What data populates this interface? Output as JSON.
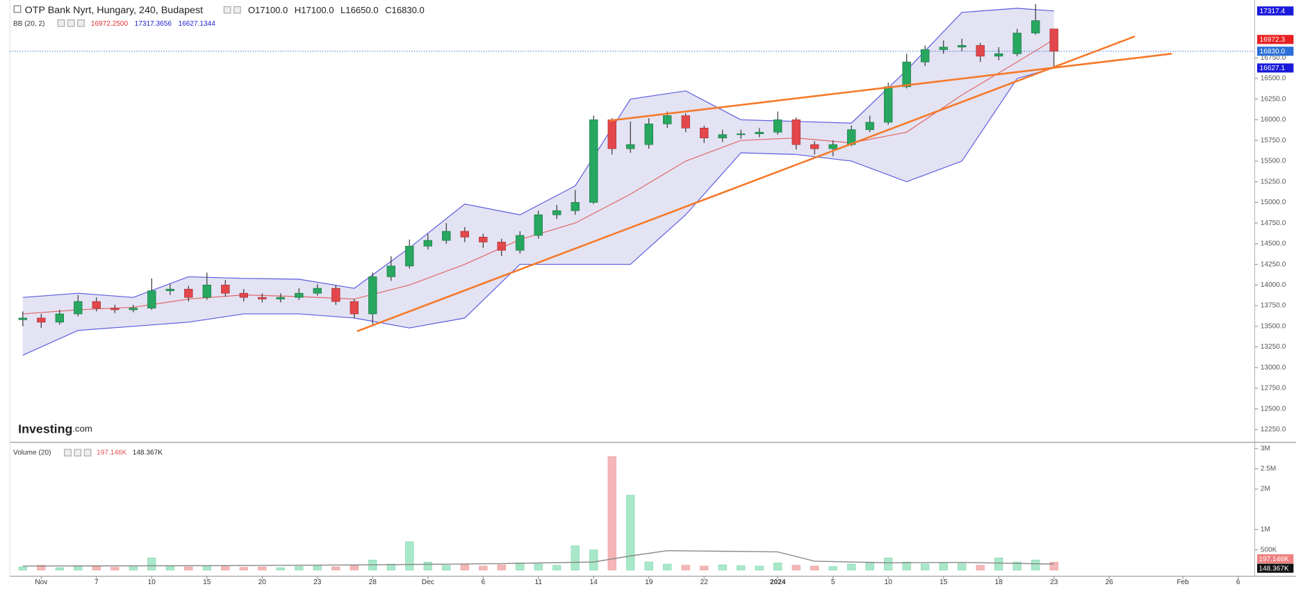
{
  "header": {
    "title": "OTP Bank Nyrt, Hungary, 240, Budapest",
    "ohlc": [
      "O17100.0",
      "H17100.0",
      "L16650.0",
      "C16830.0"
    ],
    "indicator": "BB (20, 2)",
    "indicator_values": [
      {
        "text": "16972.2500",
        "color": "#e03030"
      },
      {
        "text": "17317.3656",
        "color": "#2020d0"
      },
      {
        "text": "16627.1344",
        "color": "#2020d0"
      }
    ],
    "volume_indicator": "Volume (20)",
    "volume_values": [
      {
        "text": "197.146K",
        "color": "#e05050"
      },
      {
        "text": "148.367K",
        "color": "#222222"
      }
    ],
    "logo": [
      "Investing",
      ".com"
    ]
  },
  "chart_data": [
    {
      "type": "candlestick",
      "x": [
        -1,
        0,
        1,
        2,
        3,
        4,
        5,
        6,
        7,
        8,
        9,
        10,
        11,
        12,
        13,
        14,
        15,
        16,
        17,
        18,
        19,
        20,
        21,
        22,
        23,
        24,
        25,
        26,
        27,
        28,
        29,
        30,
        31,
        32,
        33,
        34,
        35,
        36,
        37,
        38,
        39,
        40,
        41,
        42,
        43,
        44,
        45,
        46,
        47,
        48,
        49,
        50,
        51,
        52,
        53,
        54,
        55
      ],
      "open": [
        13580,
        13600,
        13550,
        13650,
        13800,
        13720,
        13700,
        13720,
        13930,
        13950,
        13850,
        14000,
        13900,
        13850,
        13830,
        13850,
        13900,
        13960,
        13800,
        13650,
        14100,
        14230,
        14470,
        14540,
        14650,
        14580,
        14520,
        14420,
        14600,
        14850,
        14900,
        15000,
        16000,
        15650,
        15700,
        15950,
        16050,
        15900,
        15780,
        15820,
        15830,
        15850,
        16000,
        15700,
        15650,
        15700,
        15880,
        15970,
        16400,
        16700,
        16850,
        16880,
        16900,
        16770,
        16800,
        17050,
        17100
      ],
      "high": [
        13680,
        13650,
        13700,
        13880,
        13850,
        13760,
        13760,
        14080,
        14010,
        13990,
        14150,
        14060,
        13950,
        13900,
        13900,
        13960,
        14010,
        14000,
        13830,
        14150,
        14350,
        14550,
        14620,
        14750,
        14700,
        14620,
        14560,
        14650,
        14900,
        14970,
        15150,
        16050,
        16020,
        15980,
        16020,
        16100,
        16080,
        15930,
        15880,
        15880,
        15900,
        16100,
        16030,
        15740,
        15750,
        15930,
        16050,
        16450,
        16800,
        16900,
        16960,
        16980,
        16930,
        16880,
        17100,
        17400,
        17100
      ],
      "low": [
        13500,
        13480,
        13520,
        13620,
        13680,
        13660,
        13670,
        13700,
        13880,
        13800,
        13820,
        13860,
        13800,
        13790,
        13790,
        13820,
        13870,
        13760,
        13600,
        13500,
        14050,
        14200,
        14430,
        14500,
        14520,
        14450,
        14350,
        14380,
        14560,
        14800,
        14850,
        14980,
        15580,
        15600,
        15650,
        15900,
        15850,
        15720,
        15730,
        15770,
        15790,
        15820,
        15640,
        15580,
        15560,
        15680,
        15850,
        15940,
        16380,
        16650,
        16800,
        16830,
        16700,
        16720,
        16770,
        17030,
        16650
      ],
      "close": [
        13600,
        13550,
        13650,
        13800,
        13720,
        13700,
        13720,
        13930,
        13950,
        13850,
        14000,
        13900,
        13850,
        13830,
        13850,
        13900,
        13960,
        13800,
        13650,
        14100,
        14230,
        14470,
        14540,
        14650,
        14580,
        14520,
        14420,
        14600,
        14850,
        14900,
        15000,
        16000,
        15650,
        15700,
        15950,
        16050,
        15900,
        15780,
        15820,
        15830,
        15850,
        16000,
        15700,
        15650,
        15700,
        15880,
        15970,
        16400,
        16700,
        16850,
        16880,
        16900,
        16770,
        16800,
        17050,
        17200,
        16830
      ],
      "up_color": "#27a760",
      "down_color": "#e3474b",
      "xlim": [
        -1.7,
        65.9
      ],
      "ylim": [
        12100,
        17450
      ],
      "yticks": [
        {
          "value": 12250,
          "label": "12250.0"
        },
        {
          "value": 12500,
          "label": "12500.0"
        },
        {
          "value": 12750,
          "label": "12750.0"
        },
        {
          "value": 13000,
          "label": "13000.0"
        },
        {
          "value": 13250,
          "label": "13250.0"
        },
        {
          "value": 13500,
          "label": "13500.0"
        },
        {
          "value": 13750,
          "label": "13750.0"
        },
        {
          "value": 14000,
          "label": "14000.0"
        },
        {
          "value": 14250,
          "label": "14250.0"
        },
        {
          "value": 14500,
          "label": "14500.0"
        },
        {
          "value": 14750,
          "label": "14750.0"
        },
        {
          "value": 15000,
          "label": "15000.0"
        },
        {
          "value": 15250,
          "label": "15250.0"
        },
        {
          "value": 15500,
          "label": "15500.0"
        },
        {
          "value": 15750,
          "label": "15750.0"
        },
        {
          "value": 16000,
          "label": "16000.0"
        },
        {
          "value": 16250,
          "label": "16250.0"
        },
        {
          "value": 16500,
          "label": "16500.0"
        },
        {
          "value": 16750,
          "label": "16750.0"
        }
      ],
      "bands": {
        "x": [
          -1,
          2,
          5,
          8,
          11,
          14,
          17,
          20,
          23,
          26,
          29,
          32,
          35,
          38,
          41,
          44,
          47,
          50,
          53,
          55
        ],
        "upper": [
          13850,
          13900,
          13850,
          14100,
          14080,
          14070,
          13960,
          14450,
          14980,
          14850,
          15200,
          16250,
          16350,
          16000,
          15980,
          15960,
          16600,
          17300,
          17350,
          17317
        ],
        "middle": [
          13650,
          13700,
          13730,
          13830,
          13880,
          13860,
          13830,
          14000,
          14250,
          14550,
          14750,
          15100,
          15500,
          15750,
          15780,
          15720,
          15850,
          16300,
          16700,
          16972
        ],
        "lower": [
          13150,
          13450,
          13500,
          13550,
          13650,
          13650,
          13600,
          13480,
          13600,
          14250,
          14250,
          14250,
          14850,
          15600,
          15580,
          15500,
          15250,
          15500,
          16500,
          16627
        ],
        "line_color": "#5b5be0",
        "fill": "#dcdcf0",
        "middle_color": "#e06666"
      },
      "trendlines": {
        "color": "#f5792a",
        "lines": [
          {
            "x": [
              17.15,
              59.4
            ],
            "values": [
              13440,
              17010
            ]
          },
          {
            "x": [
              30.85,
              61.4
            ],
            "values": [
              15990,
              16800
            ]
          }
        ]
      },
      "last_price_line": 16830,
      "price_tags": [
        {
          "value": 17317.4,
          "label": "17317.4",
          "color": "#1a1adb"
        },
        {
          "value": 16972.3,
          "label": "16972.3",
          "color": "#e82020"
        },
        {
          "value": 16830,
          "label": "16830.0",
          "color": "#2b6fd6"
        },
        {
          "value": 16627.1,
          "label": "16627.1",
          "color": "#1a1adb"
        }
      ]
    },
    {
      "type": "bar",
      "x": [
        -1,
        0,
        1,
        2,
        3,
        4,
        5,
        6,
        7,
        8,
        9,
        10,
        11,
        12,
        13,
        14,
        15,
        16,
        17,
        18,
        19,
        20,
        21,
        22,
        23,
        24,
        25,
        26,
        27,
        28,
        29,
        30,
        31,
        32,
        33,
        34,
        35,
        36,
        37,
        38,
        39,
        40,
        41,
        42,
        43,
        44,
        45,
        46,
        47,
        48,
        49,
        50,
        51,
        52,
        53,
        54,
        55
      ],
      "values": [
        80000,
        120000,
        60000,
        100000,
        90000,
        70000,
        80000,
        300000,
        100000,
        80000,
        110000,
        90000,
        70000,
        80000,
        60000,
        90000,
        100000,
        80000,
        120000,
        250000,
        150000,
        700000,
        200000,
        120000,
        150000,
        100000,
        130000,
        180000,
        150000,
        120000,
        600000,
        500000,
        2800000,
        1850000,
        200000,
        150000,
        120000,
        100000,
        130000,
        110000,
        100000,
        180000,
        120000,
        100000,
        90000,
        150000,
        200000,
        300000,
        200000,
        150000,
        180000,
        160000,
        120000,
        300000,
        200000,
        250000,
        197146
      ],
      "up_color": "#a8e8c8",
      "down_color": "#f4b6b6",
      "xlim": [
        -1.7,
        65.9
      ],
      "ylim": [
        -140000,
        3120000
      ],
      "yticks": [
        {
          "value": 500000,
          "label": "500K"
        },
        {
          "value": 1000000,
          "label": "1M"
        },
        {
          "value": 2000000,
          "label": "2M"
        },
        {
          "value": 2500000,
          "label": "2.5M"
        },
        {
          "value": 3000000,
          "label": "3M"
        }
      ],
      "ma": {
        "x": [
          -1,
          10,
          18,
          25,
          30,
          32,
          34,
          40,
          42,
          46,
          50,
          55
        ],
        "values": [
          100000,
          110000,
          130000,
          160000,
          200000,
          350000,
          480000,
          450000,
          220000,
          180000,
          190000,
          148367
        ],
        "color": "#8a8a8a"
      },
      "value_tags": [
        {
          "value": 197146,
          "label": "197.146K",
          "color": "#f08080"
        },
        {
          "value": 148367,
          "label": "148.367K",
          "color": "#111111"
        }
      ],
      "xticks": [
        {
          "value": 0,
          "label": "Nov"
        },
        {
          "value": 3,
          "label": "7"
        },
        {
          "value": 6,
          "label": "10"
        },
        {
          "value": 9,
          "label": "15"
        },
        {
          "value": 12,
          "label": "20"
        },
        {
          "value": 15,
          "label": "23"
        },
        {
          "value": 18,
          "label": "28"
        },
        {
          "value": 21,
          "label": "Dec"
        },
        {
          "value": 24,
          "label": "6"
        },
        {
          "value": 27,
          "label": "11"
        },
        {
          "value": 30,
          "label": "14"
        },
        {
          "value": 33,
          "label": "19"
        },
        {
          "value": 36,
          "label": "22"
        },
        {
          "value": 40,
          "label": "2024"
        },
        {
          "value": 43,
          "label": "5"
        },
        {
          "value": 46,
          "label": "10"
        },
        {
          "value": 49,
          "label": "15"
        },
        {
          "value": 52,
          "label": "18"
        },
        {
          "value": 55,
          "label": "23"
        },
        {
          "value": 58,
          "label": "26"
        },
        {
          "value": 62,
          "label": "Feb"
        },
        {
          "value": 65,
          "label": "6"
        }
      ]
    }
  ]
}
